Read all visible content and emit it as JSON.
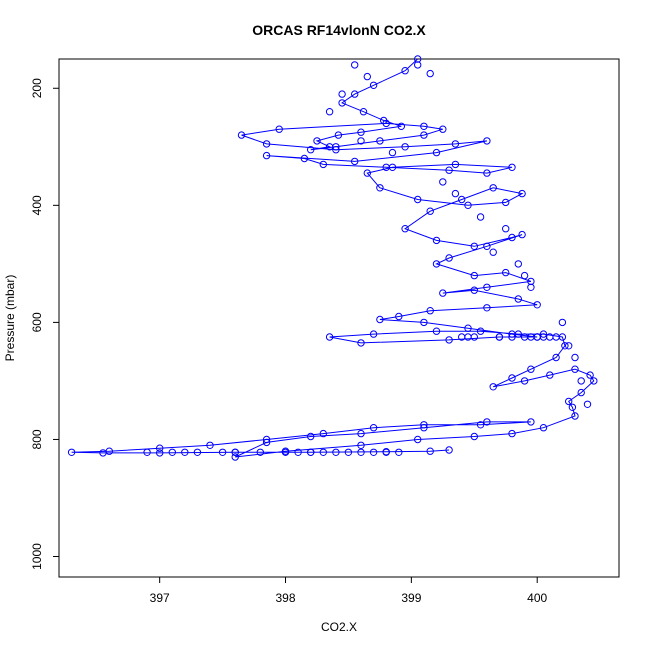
{
  "chart_data": {
    "type": "line",
    "title": "ORCAS RF14vlonN CO2.X",
    "xlabel": "CO2.X",
    "ylabel": "Pressure (mbar)",
    "xlim": [
      396.2,
      400.65
    ],
    "ylim": [
      1035,
      150
    ],
    "y_reversed": true,
    "grid": false,
    "legend": "none",
    "colors": {
      "series": "#0000ff",
      "axes": "#000000",
      "background": "#ffffff"
    },
    "x_ticks": [
      {
        "value": 397,
        "label": "397"
      },
      {
        "value": 398,
        "label": "398"
      },
      {
        "value": 399,
        "label": "399"
      },
      {
        "value": 400,
        "label": "400"
      }
    ],
    "y_ticks": [
      {
        "value": 200,
        "label": "200"
      },
      {
        "value": 400,
        "label": "400"
      },
      {
        "value": 600,
        "label": "600"
      },
      {
        "value": 800,
        "label": "800"
      },
      {
        "value": 1000,
        "label": "1000"
      }
    ],
    "series": [
      {
        "marker": "open-circle",
        "line": true,
        "x": [
          399.05,
          398.95,
          398.7,
          398.55,
          398.45,
          398.62,
          398.78,
          398.92,
          398.6,
          398.42,
          398.25,
          398.35,
          398.2,
          398.4,
          398.75,
          399.1,
          399.25,
          399.1,
          398.8,
          397.95,
          397.65,
          397.85,
          398.4,
          398.95,
          399.35,
          399.6,
          399.2,
          398.55,
          397.85,
          398.15,
          398.3,
          398.8,
          399.3,
          399.6,
          399.8,
          399.35,
          398.85,
          398.65,
          398.75,
          399.05,
          399.45,
          399.75,
          399.88,
          399.65,
          399.4,
          399.15,
          398.95,
          399.2,
          399.5,
          399.8,
          399.88,
          399.6,
          399.3,
          399.2,
          399.5,
          399.75,
          399.95,
          399.6,
          399.25,
          399.5,
          399.85,
          400.0,
          399.6,
          399.15,
          398.9,
          398.75,
          399.1,
          399.45,
          399.8,
          400.0,
          399.7,
          399.3,
          398.6,
          398.35,
          398.7,
          399.2,
          399.55,
          399.85,
          400.05,
          400.2,
          400.22,
          400.15,
          399.95,
          399.8,
          399.65,
          399.9,
          400.1,
          400.3,
          400.42,
          400.45,
          400.35,
          400.25,
          400.28,
          400.3,
          400.05,
          399.8,
          399.5,
          399.05,
          398.6,
          398.0,
          397.6,
          397.85,
          398.2,
          398.6,
          399.1,
          399.6,
          399.95,
          399.55,
          399.1,
          398.7,
          398.3,
          397.85,
          397.4,
          397.0,
          396.6,
          396.3,
          396.55,
          397.0,
          397.6,
          398.2,
          398.8,
          399.15,
          399.3
        ],
        "y": [
          150,
          170,
          195,
          210,
          225,
          240,
          255,
          265,
          275,
          280,
          290,
          300,
          305,
          300,
          290,
          280,
          270,
          265,
          260,
          270,
          280,
          295,
          305,
          300,
          295,
          290,
          310,
          325,
          315,
          320,
          330,
          335,
          340,
          345,
          335,
          330,
          335,
          345,
          370,
          390,
          400,
          395,
          380,
          370,
          390,
          410,
          440,
          460,
          470,
          455,
          450,
          470,
          490,
          500,
          520,
          515,
          530,
          540,
          550,
          545,
          560,
          570,
          575,
          580,
          590,
          595,
          600,
          610,
          620,
          625,
          625,
          630,
          635,
          625,
          620,
          615,
          615,
          620,
          620,
          625,
          640,
          660,
          680,
          695,
          710,
          700,
          690,
          680,
          690,
          700,
          720,
          735,
          745,
          760,
          780,
          790,
          795,
          800,
          810,
          820,
          830,
          805,
          795,
          790,
          780,
          770,
          770,
          775,
          775,
          780,
          790,
          800,
          810,
          815,
          820,
          822,
          823,
          823,
          822,
          822,
          821,
          820,
          818
        ]
      },
      {
        "marker": "open-circle",
        "line": false,
        "x": [
          398.1,
          398.2,
          398.3,
          398.4,
          398.5,
          398.6,
          398.7,
          398.8,
          398.9,
          397.5,
          397.6,
          397.8,
          398.0,
          397.1,
          397.3,
          396.9,
          397.2,
          399.4,
          399.45,
          399.5,
          400.1,
          400.15,
          400.05,
          399.9,
          399.95,
          400.0,
          399.7,
          399.8,
          398.55,
          398.65,
          399.05,
          399.15,
          398.45,
          398.35,
          398.6,
          398.85,
          399.25,
          399.35,
          399.55,
          399.75,
          399.65,
          399.85,
          399.9,
          399.95,
          400.2,
          400.25,
          400.3,
          400.35,
          400.4
        ],
        "y": [
          822,
          822,
          822,
          822,
          822,
          822,
          822,
          822,
          822,
          822,
          822,
          822,
          822,
          822,
          822,
          822,
          822,
          625,
          625,
          625,
          625,
          625,
          625,
          625,
          625,
          625,
          625,
          625,
          160,
          180,
          160,
          175,
          210,
          240,
          290,
          310,
          360,
          380,
          420,
          440,
          480,
          500,
          520,
          540,
          600,
          640,
          660,
          700,
          740
        ]
      }
    ]
  }
}
